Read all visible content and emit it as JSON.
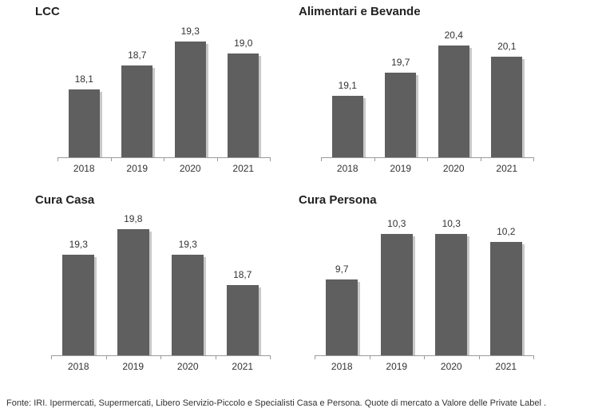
{
  "chart_data": [
    {
      "type": "bar",
      "title": "LCC",
      "categories": [
        "2018",
        "2019",
        "2020",
        "2021"
      ],
      "values": [
        18.1,
        18.7,
        19.3,
        19.0
      ],
      "value_labels": [
        "18,1",
        "18,7",
        "19,3",
        "19,0"
      ],
      "grid": false
    },
    {
      "type": "bar",
      "title": "Alimentari  e Bevande",
      "categories": [
        "2018",
        "2019",
        "2020",
        "2021"
      ],
      "values": [
        19.1,
        19.7,
        20.4,
        20.1
      ],
      "value_labels": [
        "19,1",
        "19,7",
        "20,4",
        "20,1"
      ],
      "grid": false
    },
    {
      "type": "bar",
      "title": "Cura Casa",
      "categories": [
        "2018",
        "2019",
        "2020",
        "2021"
      ],
      "values": [
        19.3,
        19.8,
        19.3,
        18.7
      ],
      "value_labels": [
        "19,3",
        "19,8",
        "19,3",
        "18,7"
      ],
      "grid": false
    },
    {
      "type": "bar",
      "title": "Cura Persona",
      "categories": [
        "2018",
        "2019",
        "2020",
        "2021"
      ],
      "values": [
        9.7,
        10.3,
        10.3,
        10.2
      ],
      "value_labels": [
        "9,7",
        "10,3",
        "10,3",
        "10,2"
      ],
      "grid": false
    }
  ],
  "footnote": "Fonte: IRI. Ipermercati, Supermercati, Libero Servizio-Piccolo e Specialisti Casa e Persona.   Quote di mercato a Valore delle Private Label .",
  "colors": {
    "bar": "#5f5f5f",
    "shadow": "#c9c9c9"
  }
}
